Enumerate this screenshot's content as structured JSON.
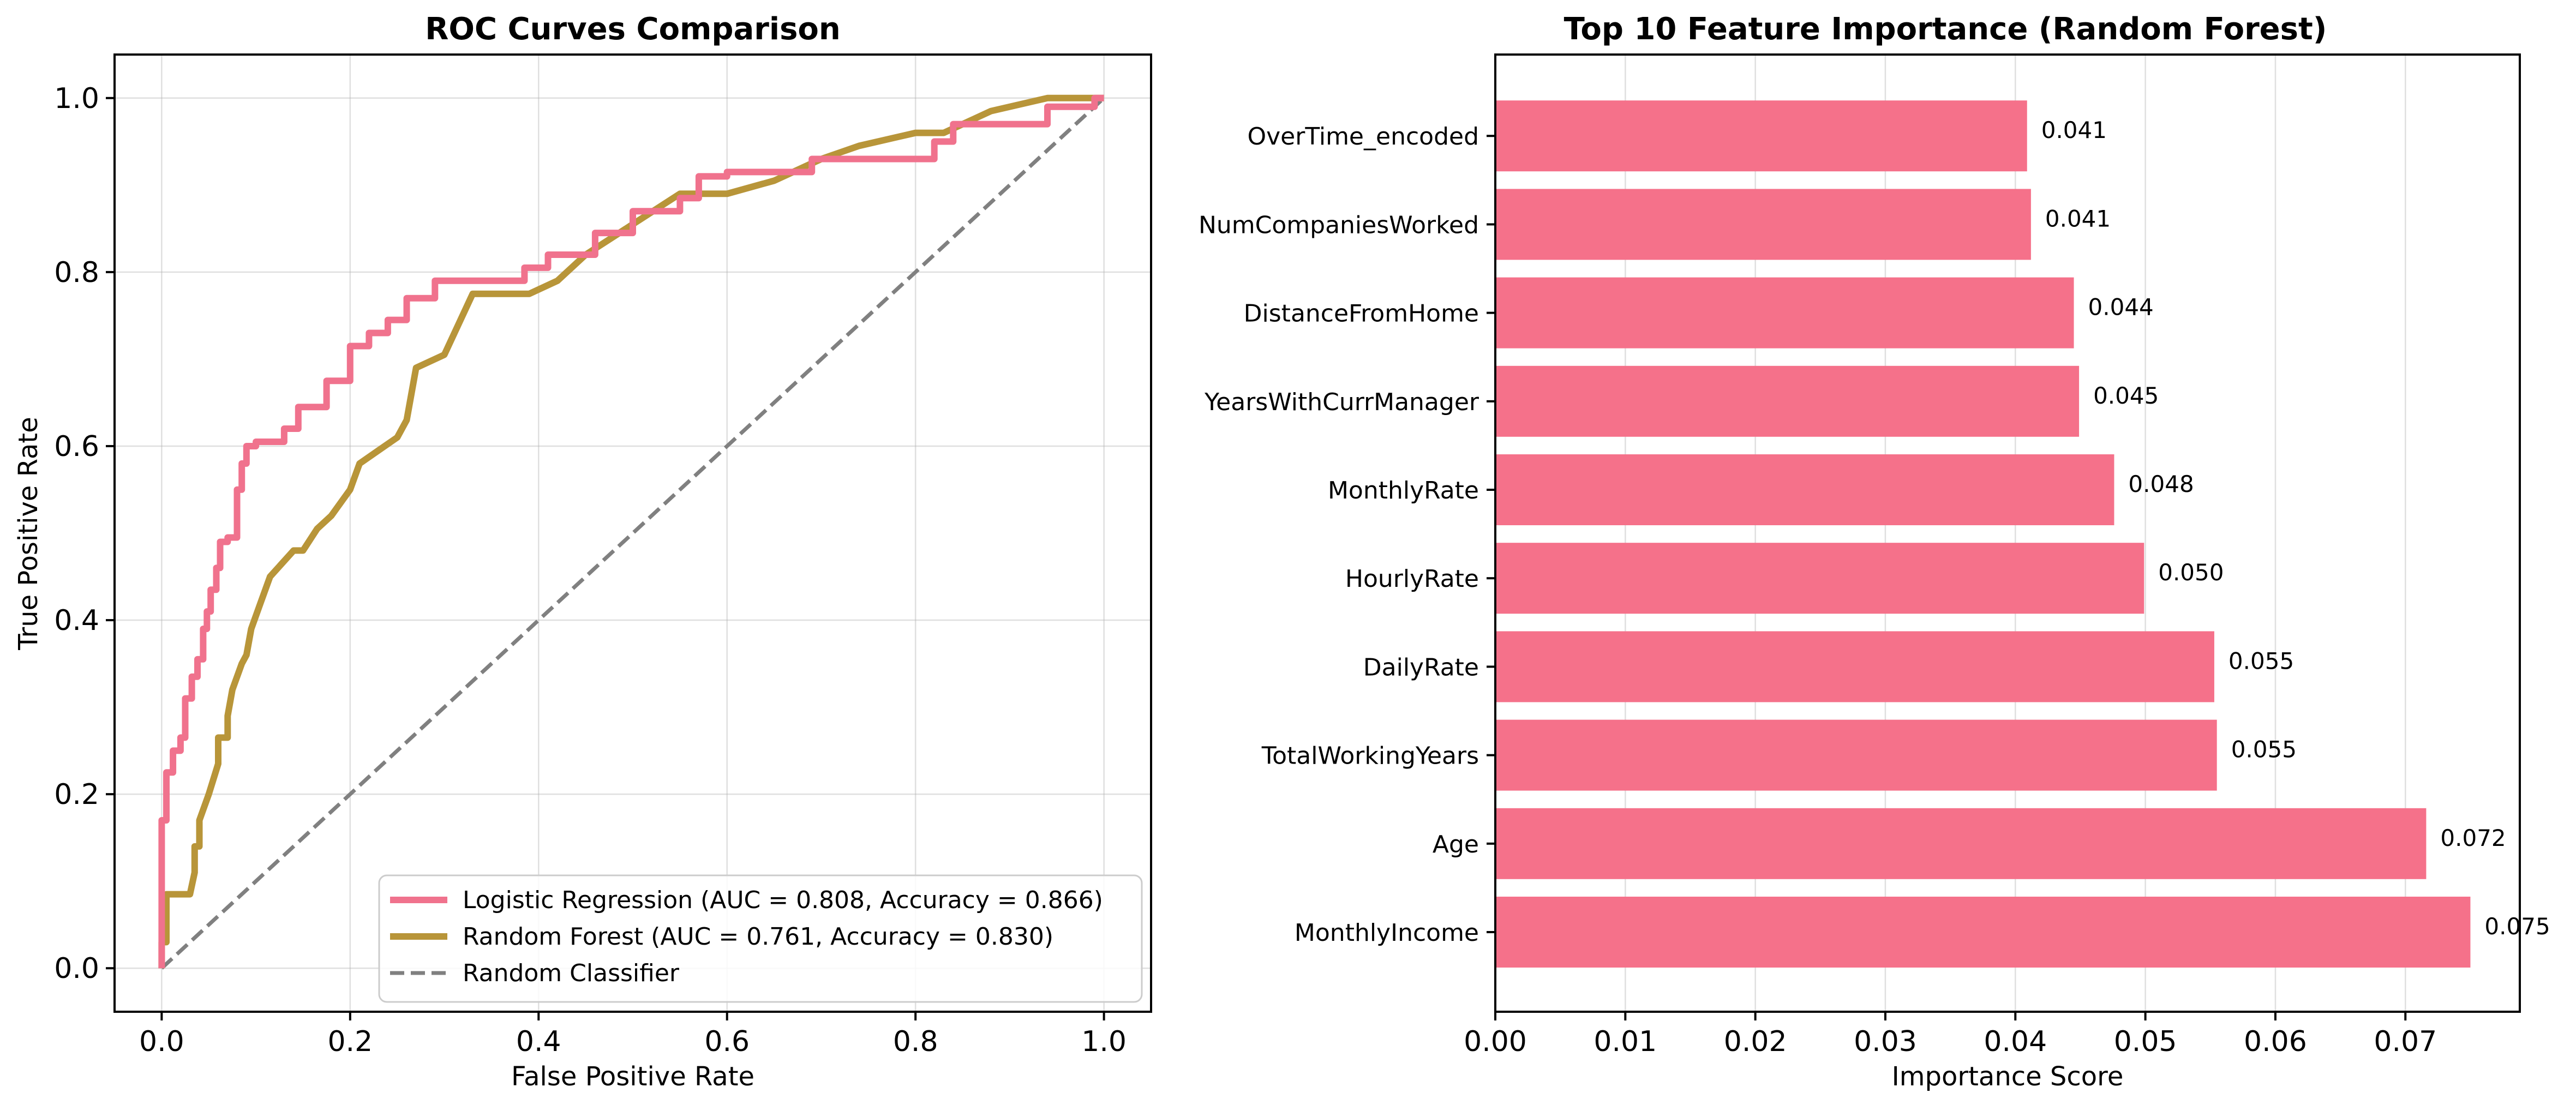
{
  "chart_data": [
    {
      "type": "line",
      "title": "ROC Curves Comparison",
      "xlabel": "False Positive Rate",
      "ylabel": "True Positive Rate",
      "xlim": [
        -0.05,
        1.05
      ],
      "ylim": [
        -0.05,
        1.05
      ],
      "xticks": [
        "0.0",
        "0.2",
        "0.4",
        "0.6",
        "0.8",
        "1.0"
      ],
      "yticks": [
        "0.0",
        "0.2",
        "0.4",
        "0.6",
        "0.8",
        "1.0"
      ],
      "grid": true,
      "legend_position": "lower-right",
      "series": [
        {
          "name": "Logistic Regression (AUC = 0.808, Accuracy = 0.866)",
          "color": "#f0728d",
          "style": "solid",
          "points": [
            [
              0,
              0
            ],
            [
              0,
              0.17
            ],
            [
              0.005,
              0.17
            ],
            [
              0.005,
              0.225
            ],
            [
              0.012,
              0.225
            ],
            [
              0.012,
              0.25
            ],
            [
              0.02,
              0.25
            ],
            [
              0.02,
              0.265
            ],
            [
              0.025,
              0.265
            ],
            [
              0.025,
              0.31
            ],
            [
              0.032,
              0.31
            ],
            [
              0.032,
              0.335
            ],
            [
              0.038,
              0.335
            ],
            [
              0.038,
              0.355
            ],
            [
              0.044,
              0.355
            ],
            [
              0.044,
              0.39
            ],
            [
              0.048,
              0.39
            ],
            [
              0.048,
              0.41
            ],
            [
              0.052,
              0.41
            ],
            [
              0.052,
              0.435
            ],
            [
              0.058,
              0.435
            ],
            [
              0.058,
              0.46
            ],
            [
              0.062,
              0.46
            ],
            [
              0.062,
              0.49
            ],
            [
              0.07,
              0.49
            ],
            [
              0.07,
              0.495
            ],
            [
              0.08,
              0.495
            ],
            [
              0.08,
              0.55
            ],
            [
              0.085,
              0.55
            ],
            [
              0.085,
              0.58
            ],
            [
              0.09,
              0.58
            ],
            [
              0.09,
              0.6
            ],
            [
              0.1,
              0.6
            ],
            [
              0.1,
              0.605
            ],
            [
              0.13,
              0.605
            ],
            [
              0.13,
              0.62
            ],
            [
              0.145,
              0.62
            ],
            [
              0.145,
              0.645
            ],
            [
              0.175,
              0.645
            ],
            [
              0.175,
              0.675
            ],
            [
              0.2,
              0.675
            ],
            [
              0.2,
              0.715
            ],
            [
              0.22,
              0.715
            ],
            [
              0.22,
              0.73
            ],
            [
              0.24,
              0.73
            ],
            [
              0.24,
              0.745
            ],
            [
              0.26,
              0.745
            ],
            [
              0.26,
              0.77
            ],
            [
              0.29,
              0.77
            ],
            [
              0.29,
              0.79
            ],
            [
              0.385,
              0.79
            ],
            [
              0.385,
              0.805
            ],
            [
              0.41,
              0.805
            ],
            [
              0.41,
              0.82
            ],
            [
              0.46,
              0.82
            ],
            [
              0.46,
              0.845
            ],
            [
              0.5,
              0.845
            ],
            [
              0.5,
              0.87
            ],
            [
              0.55,
              0.87
            ],
            [
              0.55,
              0.885
            ],
            [
              0.57,
              0.885
            ],
            [
              0.57,
              0.91
            ],
            [
              0.6,
              0.91
            ],
            [
              0.6,
              0.915
            ],
            [
              0.69,
              0.915
            ],
            [
              0.69,
              0.93
            ],
            [
              0.82,
              0.93
            ],
            [
              0.82,
              0.95
            ],
            [
              0.84,
              0.95
            ],
            [
              0.84,
              0.97
            ],
            [
              0.94,
              0.97
            ],
            [
              0.94,
              0.99
            ],
            [
              0.99,
              0.99
            ],
            [
              0.99,
              1.0
            ],
            [
              1.0,
              1.0
            ]
          ]
        },
        {
          "name": "Random Forest (AUC = 0.761, Accuracy = 0.830)",
          "color": "#b89539",
          "style": "solid",
          "points": [
            [
              0,
              0
            ],
            [
              0,
              0.03
            ],
            [
              0.005,
              0.03
            ],
            [
              0.005,
              0.085
            ],
            [
              0.03,
              0.085
            ],
            [
              0.035,
              0.11
            ],
            [
              0.035,
              0.14
            ],
            [
              0.04,
              0.14
            ],
            [
              0.04,
              0.17
            ],
            [
              0.05,
              0.2
            ],
            [
              0.06,
              0.235
            ],
            [
              0.06,
              0.265
            ],
            [
              0.07,
              0.265
            ],
            [
              0.07,
              0.29
            ],
            [
              0.075,
              0.32
            ],
            [
              0.085,
              0.35
            ],
            [
              0.09,
              0.36
            ],
            [
              0.095,
              0.39
            ],
            [
              0.105,
              0.42
            ],
            [
              0.115,
              0.45
            ],
            [
              0.14,
              0.48
            ],
            [
              0.15,
              0.48
            ],
            [
              0.165,
              0.505
            ],
            [
              0.18,
              0.52
            ],
            [
              0.2,
              0.55
            ],
            [
              0.21,
              0.58
            ],
            [
              0.23,
              0.595
            ],
            [
              0.25,
              0.61
            ],
            [
              0.26,
              0.63
            ],
            [
              0.27,
              0.69
            ],
            [
              0.3,
              0.705
            ],
            [
              0.33,
              0.775
            ],
            [
              0.39,
              0.775
            ],
            [
              0.42,
              0.79
            ],
            [
              0.45,
              0.82
            ],
            [
              0.5,
              0.855
            ],
            [
              0.55,
              0.89
            ],
            [
              0.6,
              0.89
            ],
            [
              0.65,
              0.905
            ],
            [
              0.7,
              0.93
            ],
            [
              0.74,
              0.945
            ],
            [
              0.8,
              0.96
            ],
            [
              0.83,
              0.96
            ],
            [
              0.88,
              0.985
            ],
            [
              0.94,
              1.0
            ],
            [
              1.0,
              1.0
            ]
          ]
        },
        {
          "name": "Random Classifier",
          "color": "#808080",
          "style": "dashed",
          "points": [
            [
              0,
              0
            ],
            [
              1,
              1
            ]
          ]
        }
      ]
    },
    {
      "type": "bar",
      "orientation": "horizontal",
      "title": "Top 10 Feature Importance (Random Forest)",
      "xlabel": "Importance Score",
      "ylabel": "",
      "xlim": [
        0,
        0.0788
      ],
      "xticks": [
        "0.00",
        "0.01",
        "0.02",
        "0.03",
        "0.04",
        "0.05",
        "0.06",
        "0.07"
      ],
      "grid": true,
      "color": "#f5718a",
      "categories": [
        "MonthlyIncome",
        "Age",
        "TotalWorkingYears",
        "DailyRate",
        "HourlyRate",
        "MonthlyRate",
        "YearsWithCurrManager",
        "DistanceFromHome",
        "NumCompaniesWorked",
        "OverTime_encoded"
      ],
      "values": [
        0.075,
        0.0716,
        0.0555,
        0.0553,
        0.0499,
        0.0476,
        0.0449,
        0.0445,
        0.0412,
        0.0409
      ],
      "value_labels": [
        "0.075",
        "0.072",
        "0.055",
        "0.055",
        "0.050",
        "0.048",
        "0.045",
        "0.044",
        "0.041",
        "0.041"
      ]
    }
  ]
}
